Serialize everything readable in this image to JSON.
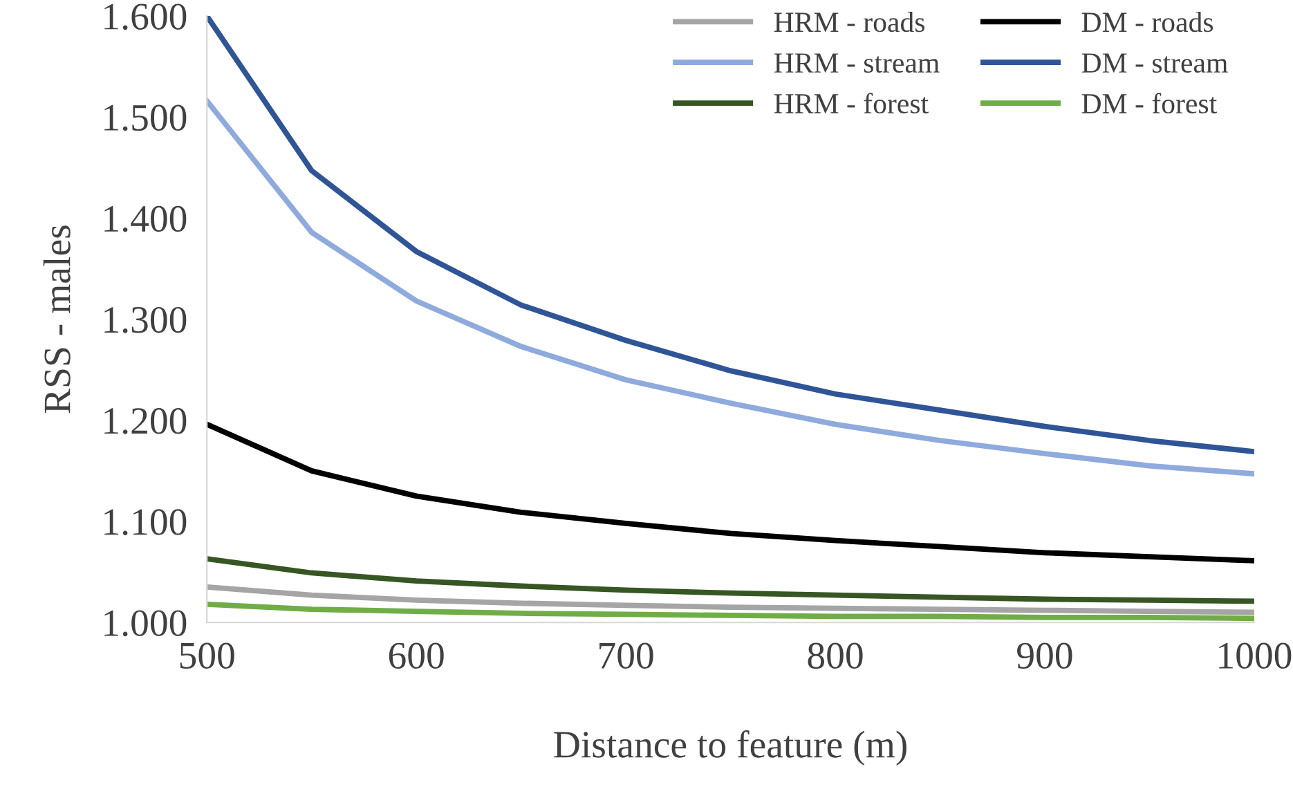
{
  "chart_data": {
    "type": "line",
    "xlabel": "Distance to feature (m)",
    "ylabel": "RSS - males",
    "x": [
      500,
      550,
      600,
      650,
      700,
      750,
      800,
      850,
      900,
      950,
      1000
    ],
    "xlim": [
      500,
      1000
    ],
    "xticks": [
      500,
      600,
      700,
      800,
      900,
      1000
    ],
    "ylim": [
      1.0,
      1.6
    ],
    "yticks": [
      {
        "value": 1.0,
        "label": "1.000"
      },
      {
        "value": 1.1,
        "label": "1.100"
      },
      {
        "value": 1.2,
        "label": "1.200"
      },
      {
        "value": 1.3,
        "label": "1.300"
      },
      {
        "value": 1.4,
        "label": "1.400"
      },
      {
        "value": 1.5,
        "label": "1.500"
      },
      {
        "value": 1.6,
        "label": "1.600"
      }
    ],
    "grid": false,
    "legend": "top right",
    "marker": "none",
    "line_style": "solid",
    "series": [
      {
        "name": "HRM - roads",
        "color": "#a5a5a5",
        "values": [
          1.035,
          1.027,
          1.022,
          1.019,
          1.017,
          1.015,
          1.014,
          1.013,
          1.012,
          1.011,
          1.01
        ]
      },
      {
        "name": "DM - roads",
        "color": "#000000",
        "values": [
          1.196,
          1.15,
          1.125,
          1.109,
          1.098,
          1.088,
          1.081,
          1.075,
          1.069,
          1.065,
          1.061
        ]
      },
      {
        "name": "HRM - stream",
        "color": "#8faadc",
        "values": [
          1.516,
          1.386,
          1.318,
          1.273,
          1.24,
          1.217,
          1.196,
          1.18,
          1.167,
          1.155,
          1.147
        ]
      },
      {
        "name": "DM - stream",
        "color": "#2f5597",
        "values": [
          1.6,
          1.447,
          1.367,
          1.314,
          1.279,
          1.249,
          1.226,
          1.21,
          1.194,
          1.18,
          1.169
        ]
      },
      {
        "name": "HRM - forest",
        "color": "#375623",
        "values": [
          1.063,
          1.049,
          1.041,
          1.036,
          1.032,
          1.029,
          1.027,
          1.025,
          1.023,
          1.022,
          1.021
        ]
      },
      {
        "name": "DM - forest",
        "color": "#70ad47",
        "values": [
          1.018,
          1.013,
          1.011,
          1.009,
          1.008,
          1.007,
          1.006,
          1.006,
          1.005,
          1.005,
          1.004
        ]
      }
    ]
  }
}
